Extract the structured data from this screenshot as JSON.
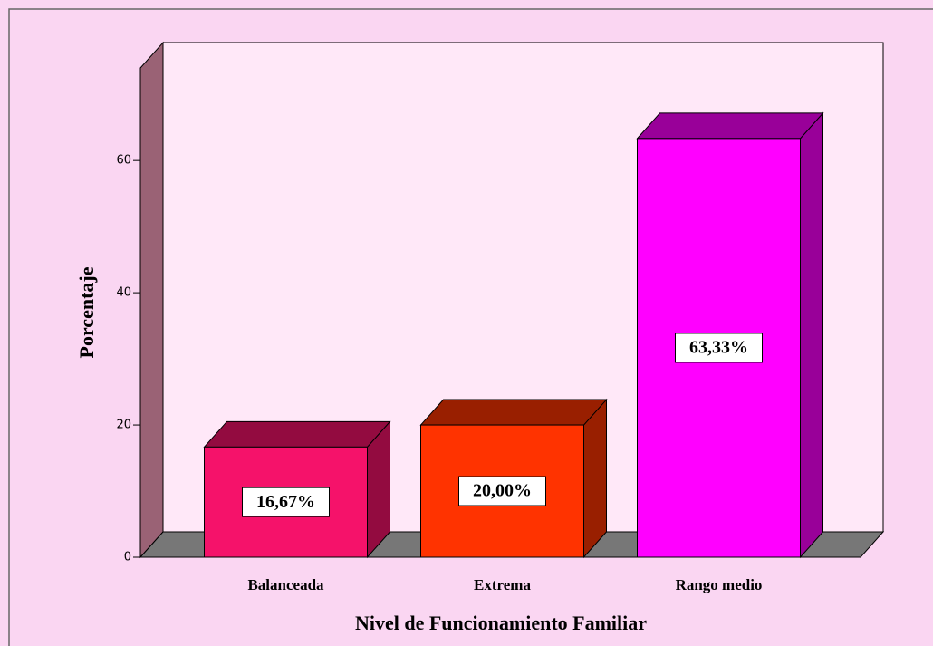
{
  "chart_data": {
    "type": "bar3d",
    "x_label": "Nivel de Funcionamiento Familiar",
    "y_label": "Porcentaje",
    "categories": [
      "Balanceada",
      "Extrema",
      "Rango medio"
    ],
    "values": [
      16.67,
      20.0,
      63.33
    ],
    "value_labels": [
      "16,67%",
      "20,00%",
      "63,33%"
    ],
    "colors": [
      "#f5126a",
      "#ff3300",
      "#ff00ff"
    ],
    "ylim": [
      0,
      74
    ],
    "yticks": [
      0,
      20,
      40,
      60
    ]
  }
}
